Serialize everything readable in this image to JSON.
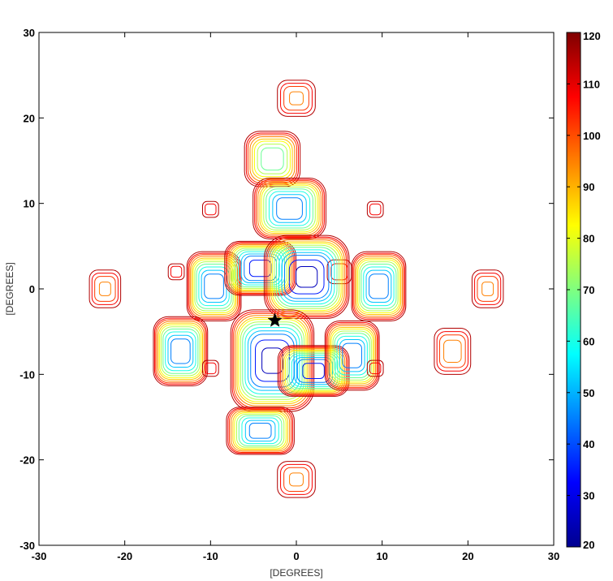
{
  "chart_data": {
    "type": "contour",
    "xlabel": "[DEGREES]",
    "ylabel": "[DEGREES]",
    "xlim": [
      -30,
      30
    ],
    "ylim": [
      -30,
      30
    ],
    "xticks": [
      "-30",
      "-20",
      "-10",
      "0",
      "10",
      "20",
      "30"
    ],
    "yticks": [
      "30",
      "20",
      "10",
      "0",
      "-10",
      "-20",
      "-30"
    ],
    "colorbar": {
      "min": 20,
      "max": 120,
      "ticks": [
        "120",
        "110",
        "100",
        "90",
        "80",
        "70",
        "60",
        "50",
        "40",
        "30",
        "20"
      ]
    },
    "colormap": [
      "#00008f",
      "#0000ff",
      "#007fff",
      "#00ffff",
      "#7fff7f",
      "#ffff00",
      "#ff7f00",
      "#ff0000",
      "#7f0000"
    ],
    "marker": {
      "x": -2.5,
      "y": -3.7,
      "symbol": "star"
    },
    "lobes": [
      {
        "x": 0.0,
        "y": 22.3,
        "rx": 2.3,
        "ry": 2.2,
        "min_level": 95
      },
      {
        "x": -2.8,
        "y": 15.2,
        "rx": 3.3,
        "ry": 3.3,
        "min_level": 62
      },
      {
        "x": -0.8,
        "y": 9.4,
        "rx": 4.3,
        "ry": 3.6,
        "min_level": 38
      },
      {
        "x": -10.0,
        "y": 9.3,
        "rx": 1.0,
        "ry": 1.0,
        "min_level": 105
      },
      {
        "x": 9.2,
        "y": 9.3,
        "rx": 1.0,
        "ry": 1.0,
        "min_level": 105
      },
      {
        "x": -22.3,
        "y": 0.0,
        "rx": 1.9,
        "ry": 2.3,
        "min_level": 95
      },
      {
        "x": 22.3,
        "y": 0.0,
        "rx": 1.9,
        "ry": 2.3,
        "min_level": 95
      },
      {
        "x": -9.6,
        "y": 0.3,
        "rx": 3.2,
        "ry": 4.1,
        "min_level": 38
      },
      {
        "x": 9.6,
        "y": 0.3,
        "rx": 3.2,
        "ry": 4.1,
        "min_level": 38
      },
      {
        "x": -14.0,
        "y": 2.0,
        "rx": 1.0,
        "ry": 1.0,
        "min_level": 105
      },
      {
        "x": 5.0,
        "y": 2.0,
        "rx": 1.5,
        "ry": 1.5,
        "min_level": 105
      },
      {
        "x": -4.2,
        "y": 2.4,
        "rx": 4.2,
        "ry": 3.2,
        "min_level": 30
      },
      {
        "x": 1.2,
        "y": 1.4,
        "rx": 5.0,
        "ry": 4.9,
        "min_level": 22
      },
      {
        "x": -2.8,
        "y": -8.4,
        "rx": 4.9,
        "ry": 6.0,
        "min_level": 22
      },
      {
        "x": 2.0,
        "y": -9.6,
        "rx": 4.2,
        "ry": 3.0,
        "min_level": 30
      },
      {
        "x": 6.5,
        "y": -7.8,
        "rx": 3.2,
        "ry": 4.1,
        "min_level": 38
      },
      {
        "x": -13.5,
        "y": -7.3,
        "rx": 3.2,
        "ry": 4.1,
        "min_level": 38
      },
      {
        "x": 18.2,
        "y": -7.3,
        "rx": 2.2,
        "ry": 2.8,
        "min_level": 92
      },
      {
        "x": -10.0,
        "y": -9.3,
        "rx": 1.0,
        "ry": 1.0,
        "min_level": 105
      },
      {
        "x": 9.2,
        "y": -9.3,
        "rx": 1.0,
        "ry": 1.0,
        "min_level": 105
      },
      {
        "x": -4.2,
        "y": -16.6,
        "rx": 4.0,
        "ry": 2.8,
        "min_level": 40
      },
      {
        "x": 0.0,
        "y": -22.3,
        "rx": 2.3,
        "ry": 2.2,
        "min_level": 95
      }
    ],
    "levels": [
      25,
      35,
      45,
      52,
      60,
      68,
      75,
      82,
      88,
      95,
      102,
      108,
      115
    ]
  }
}
